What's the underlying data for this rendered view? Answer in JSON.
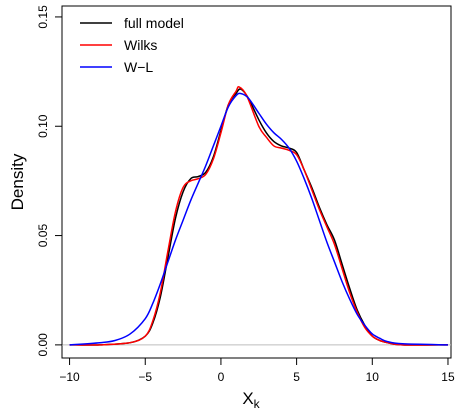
{
  "chart_data": {
    "type": "line",
    "xlabel": "X",
    "xlabel_subscript": "k",
    "ylabel": "Density",
    "xlim": [
      -10.5,
      15.2
    ],
    "ylim": [
      -0.006,
      0.155
    ],
    "x_ticks": [
      -10,
      -5,
      0,
      5,
      10,
      15
    ],
    "x_tick_labels": [
      "−10",
      "−5",
      "0",
      "5",
      "10",
      "15"
    ],
    "y_ticks": [
      0.0,
      0.05,
      0.1,
      0.15
    ],
    "y_tick_labels": [
      "0.00",
      "0.05",
      "0.10",
      "0.15"
    ],
    "baseline_color": "#bebebe",
    "legend_position": "top-left",
    "series": [
      {
        "name": "full model",
        "color": "#000000",
        "points": [
          [
            -10,
            0
          ],
          [
            -8,
            0
          ],
          [
            -6,
            0.001
          ],
          [
            -5,
            0.004
          ],
          [
            -4.5,
            0.01
          ],
          [
            -4,
            0.022
          ],
          [
            -3.5,
            0.04
          ],
          [
            -3,
            0.058
          ],
          [
            -2.5,
            0.07
          ],
          [
            -2,
            0.076
          ],
          [
            -1.5,
            0.077
          ],
          [
            -1,
            0.079
          ],
          [
            -0.5,
            0.086
          ],
          [
            0,
            0.098
          ],
          [
            0.5,
            0.11
          ],
          [
            1,
            0.115
          ],
          [
            1.3,
            0.117
          ],
          [
            1.8,
            0.113
          ],
          [
            2.5,
            0.103
          ],
          [
            3,
            0.097
          ],
          [
            3.5,
            0.093
          ],
          [
            4,
            0.091
          ],
          [
            4.5,
            0.09
          ],
          [
            5,
            0.088
          ],
          [
            5.5,
            0.08
          ],
          [
            6,
            0.072
          ],
          [
            6.5,
            0.063
          ],
          [
            7,
            0.055
          ],
          [
            7.5,
            0.048
          ],
          [
            8,
            0.037
          ],
          [
            8.5,
            0.026
          ],
          [
            9,
            0.016
          ],
          [
            9.5,
            0.009
          ],
          [
            10,
            0.004
          ],
          [
            10.5,
            0.002
          ],
          [
            11,
            0.001
          ],
          [
            12,
            0
          ],
          [
            15,
            0
          ]
        ]
      },
      {
        "name": "Wilks",
        "color": "#ff0000",
        "points": [
          [
            -10,
            0
          ],
          [
            -8,
            0
          ],
          [
            -6,
            0.001
          ],
          [
            -5,
            0.004
          ],
          [
            -4.5,
            0.011
          ],
          [
            -4,
            0.024
          ],
          [
            -3.5,
            0.043
          ],
          [
            -3,
            0.061
          ],
          [
            -2.5,
            0.072
          ],
          [
            -2,
            0.075
          ],
          [
            -1.5,
            0.076
          ],
          [
            -1,
            0.078
          ],
          [
            -0.5,
            0.085
          ],
          [
            0,
            0.097
          ],
          [
            0.5,
            0.11
          ],
          [
            1,
            0.116
          ],
          [
            1.2,
            0.118
          ],
          [
            1.7,
            0.114
          ],
          [
            2.5,
            0.1
          ],
          [
            3,
            0.095
          ],
          [
            3.5,
            0.091
          ],
          [
            4,
            0.09
          ],
          [
            4.5,
            0.089
          ],
          [
            5,
            0.087
          ],
          [
            5.5,
            0.08
          ],
          [
            6,
            0.071
          ],
          [
            6.5,
            0.062
          ],
          [
            7,
            0.054
          ],
          [
            7.5,
            0.046
          ],
          [
            8,
            0.035
          ],
          [
            8.5,
            0.024
          ],
          [
            9,
            0.015
          ],
          [
            9.5,
            0.008
          ],
          [
            10,
            0.004
          ],
          [
            10.5,
            0.002
          ],
          [
            11,
            0.001
          ],
          [
            12,
            0
          ],
          [
            15,
            0
          ]
        ]
      },
      {
        "name": "W−L",
        "color": "#0000ff",
        "points": [
          [
            -10,
            0
          ],
          [
            -8,
            0.001
          ],
          [
            -7,
            0.002
          ],
          [
            -6,
            0.005
          ],
          [
            -5,
            0.012
          ],
          [
            -4.5,
            0.019
          ],
          [
            -4,
            0.028
          ],
          [
            -3.5,
            0.038
          ],
          [
            -3,
            0.048
          ],
          [
            -2.5,
            0.057
          ],
          [
            -2,
            0.066
          ],
          [
            -1.5,
            0.074
          ],
          [
            -1,
            0.082
          ],
          [
            -0.5,
            0.091
          ],
          [
            0,
            0.1
          ],
          [
            0.5,
            0.109
          ],
          [
            1,
            0.114
          ],
          [
            1.3,
            0.115
          ],
          [
            1.8,
            0.113
          ],
          [
            2.5,
            0.106
          ],
          [
            3,
            0.101
          ],
          [
            3.5,
            0.097
          ],
          [
            4,
            0.094
          ],
          [
            4.5,
            0.09
          ],
          [
            5,
            0.084
          ],
          [
            5.5,
            0.076
          ],
          [
            6,
            0.067
          ],
          [
            6.5,
            0.057
          ],
          [
            7,
            0.047
          ],
          [
            7.5,
            0.038
          ],
          [
            8,
            0.029
          ],
          [
            8.5,
            0.021
          ],
          [
            9,
            0.014
          ],
          [
            9.5,
            0.009
          ],
          [
            10,
            0.005
          ],
          [
            10.5,
            0.003
          ],
          [
            11,
            0.0015
          ],
          [
            12,
            0.0005
          ],
          [
            15,
            0
          ]
        ]
      }
    ]
  }
}
